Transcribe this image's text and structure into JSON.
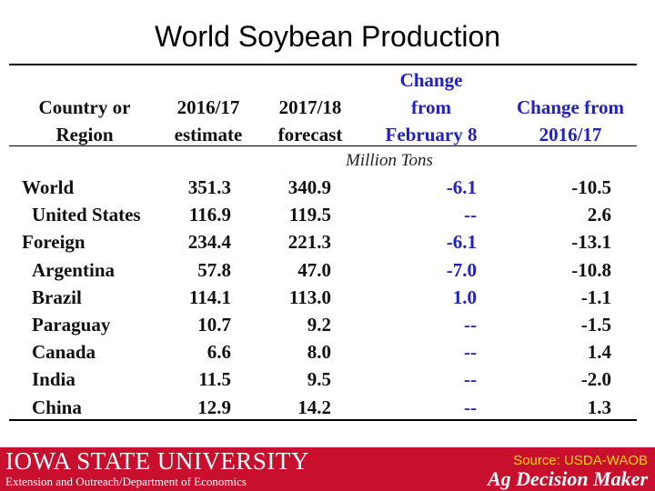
{
  "title": "World Soybean Production",
  "table": {
    "headers": [
      {
        "lines": [
          "Country or",
          "Region"
        ],
        "color": "#111111"
      },
      {
        "lines": [
          "2016/17",
          "estimate"
        ],
        "color": "#111111"
      },
      {
        "lines": [
          "2017/18",
          "forecast"
        ],
        "color": "#111111"
      },
      {
        "lines": [
          "Change",
          "from",
          "February 8"
        ],
        "color": "#2020c8"
      },
      {
        "lines": [
          "Change from",
          "2016/17"
        ],
        "color": "#2020c8"
      }
    ],
    "units": "Million Tons",
    "rows": [
      {
        "name": "World",
        "indent": 0,
        "est": "351.3",
        "fc": "340.9",
        "chg_feb": "-6.1",
        "chg_prev": "-10.5"
      },
      {
        "name": "United States",
        "indent": 1,
        "est": "116.9",
        "fc": "119.5",
        "chg_feb": "--",
        "chg_prev": "2.6"
      },
      {
        "name": "Foreign",
        "indent": 0,
        "est": "234.4",
        "fc": "221.3",
        "chg_feb": "-6.1",
        "chg_prev": "-13.1"
      },
      {
        "name": "Argentina",
        "indent": 1,
        "est": "57.8",
        "fc": "47.0",
        "chg_feb": "-7.0",
        "chg_prev": "-10.8"
      },
      {
        "name": "Brazil",
        "indent": 1,
        "est": "114.1",
        "fc": "113.0",
        "chg_feb": "1.0",
        "chg_prev": "-1.1"
      },
      {
        "name": "Paraguay",
        "indent": 1,
        "est": "10.7",
        "fc": "9.2",
        "chg_feb": "--",
        "chg_prev": "-1.5"
      },
      {
        "name": "Canada",
        "indent": 1,
        "est": "6.6",
        "fc": "8.0",
        "chg_feb": "--",
        "chg_prev": "1.4"
      },
      {
        "name": "India",
        "indent": 1,
        "est": "11.5",
        "fc": "9.5",
        "chg_feb": "--",
        "chg_prev": "-2.0"
      },
      {
        "name": "China",
        "indent": 1,
        "est": "12.9",
        "fc": "14.2",
        "chg_feb": "--",
        "chg_prev": "1.3"
      }
    ]
  },
  "footer": {
    "university": "IOWA STATE UNIVERSITY",
    "department": "Extension and Outreach/Department of Economics",
    "source": "Source: USDA-WAOB",
    "brand": "Ag Decision Maker",
    "background_color": "#c8102e"
  }
}
